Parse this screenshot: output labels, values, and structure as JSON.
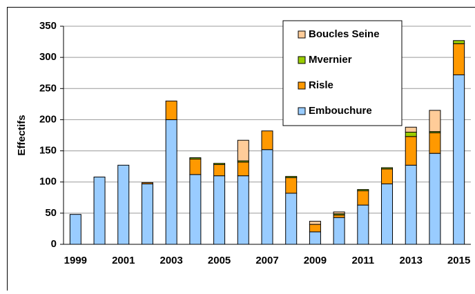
{
  "chart_data": {
    "type": "stacked-bar",
    "y_label": "Effectifs",
    "categories": [
      "1999",
      null,
      "2001",
      null,
      "2003",
      null,
      "2005",
      null,
      "2007",
      null,
      "2009",
      null,
      "2011",
      null,
      "2013",
      null,
      "2015"
    ],
    "series": [
      {
        "name": "Embouchure",
        "color": "#99ccff",
        "values": [
          48,
          108,
          127,
          97,
          200,
          112,
          110,
          110,
          152,
          82,
          20,
          43,
          63,
          97,
          127,
          146,
          272
        ]
      },
      {
        "name": "Risle",
        "color": "#ff9900",
        "values": [
          0,
          0,
          0,
          2,
          30,
          25,
          18,
          22,
          30,
          25,
          12,
          4,
          23,
          24,
          46,
          33,
          50
        ]
      },
      {
        "name": "Mvernier",
        "color": "#99cc00",
        "values": [
          0,
          0,
          0,
          0,
          0,
          2,
          2,
          2,
          0,
          2,
          0,
          2,
          2,
          2,
          7,
          2,
          5
        ]
      },
      {
        "name": "Boucles Seine",
        "color": "#ffcc99",
        "values": [
          0,
          0,
          0,
          0,
          0,
          0,
          0,
          33,
          0,
          0,
          5,
          3,
          0,
          0,
          8,
          34,
          0
        ]
      }
    ],
    "ylim": [
      0,
      350
    ],
    "yticks": [
      0,
      50,
      100,
      150,
      200,
      250,
      300,
      350
    ],
    "grid": true
  }
}
